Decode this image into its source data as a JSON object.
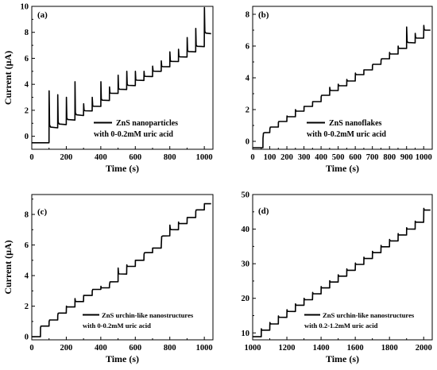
{
  "chart_data": [
    {
      "panel": "(a)",
      "type": "line",
      "xlabel": "Time (s)",
      "ylabel": "Current (µA)",
      "xlim": [
        0,
        1050
      ],
      "ylim": [
        -1,
        10
      ],
      "xticks": [
        0,
        200,
        400,
        600,
        800,
        1000
      ],
      "yticks": [
        0,
        2,
        4,
        6,
        8,
        10
      ],
      "legend": [
        "ZnS nanoparticles",
        "with 0-0.2mM uric acid"
      ],
      "legend_position": "bottom-right",
      "series": [
        {
          "pulse_times": [
            100,
            150,
            200,
            250,
            300,
            350,
            400,
            450,
            500,
            550,
            600,
            650,
            700,
            750,
            800,
            850,
            900,
            950,
            1000
          ],
          "plateaus": [
            0.3,
            0.65,
            0.9,
            1.25,
            1.6,
            1.95,
            2.3,
            2.75,
            3.3,
            3.6,
            3.9,
            4.3,
            4.6,
            5.0,
            5.35,
            5.75,
            6.1,
            6.5,
            6.9,
            7.9
          ],
          "peaks": [
            3.5,
            3.2,
            3.0,
            4.2,
            2.5,
            3.0,
            4.2,
            3.8,
            4.7,
            5.0,
            5.0,
            5.0,
            5.4,
            5.8,
            6.5,
            6.7,
            7.6,
            8.3,
            9.9
          ],
          "baseline": -0.5
        }
      ]
    },
    {
      "panel": "(b)",
      "type": "line",
      "xlabel": "Time (s)",
      "ylabel": "",
      "xlim": [
        0,
        1050
      ],
      "ylim": [
        -0.5,
        8.5
      ],
      "xticks": [
        0,
        100,
        200,
        300,
        400,
        500,
        600,
        700,
        800,
        900,
        1000
      ],
      "yticks": [
        0,
        2,
        4,
        6,
        8
      ],
      "legend": [
        "ZnS nanoflakes",
        "with 0-0.2mM uric acid"
      ],
      "legend_position": "bottom-right",
      "series": [
        {
          "pulse_times": [
            60,
            100,
            150,
            200,
            250,
            300,
            350,
            400,
            450,
            500,
            550,
            600,
            650,
            700,
            750,
            800,
            850,
            900,
            950,
            1000
          ],
          "plateaus": [
            0.2,
            0.55,
            0.9,
            1.25,
            1.55,
            1.9,
            2.2,
            2.5,
            2.9,
            3.2,
            3.5,
            3.8,
            4.2,
            4.5,
            4.85,
            5.2,
            5.5,
            5.85,
            6.2,
            6.5,
            7.0
          ],
          "peaks": [
            0.2,
            0.8,
            1.2,
            1.6,
            2.0,
            2.2,
            2.5,
            2.8,
            3.4,
            3.6,
            3.9,
            4.3,
            4.5,
            4.8,
            5.1,
            5.6,
            6.0,
            7.2,
            6.8,
            7.3
          ],
          "baseline": -0.4
        }
      ]
    },
    {
      "panel": "(c)",
      "type": "line",
      "xlabel": "Time (s)",
      "ylabel": "Current (µA)",
      "xlim": [
        0,
        1050
      ],
      "ylim": [
        -0.2,
        9.3
      ],
      "xticks": [
        0,
        200,
        400,
        600,
        800,
        1000
      ],
      "yticks": [
        0,
        2,
        4,
        6,
        8
      ],
      "legend": [
        "ZnS urchin-like nanostructures",
        "with 0-0.2mM uric acid"
      ],
      "legend_position": "bottom-right",
      "series": [
        {
          "pulse_times": [
            50,
            100,
            150,
            200,
            250,
            300,
            350,
            400,
            450,
            500,
            550,
            600,
            650,
            700,
            750,
            800,
            850,
            900,
            950,
            1000
          ],
          "plateaus": [
            0.3,
            0.7,
            1.1,
            1.55,
            1.95,
            2.3,
            2.7,
            3.1,
            3.2,
            3.6,
            4.1,
            4.6,
            5.0,
            5.5,
            5.8,
            6.6,
            7.0,
            7.4,
            7.8,
            8.3,
            8.7
          ],
          "peaks": [
            0.6,
            1.0,
            1.4,
            2.0,
            2.5,
            2.7,
            3.0,
            3.3,
            3.4,
            4.5,
            4.7,
            5.0,
            5.4,
            5.8,
            6.0,
            7.3,
            7.5,
            7.8,
            8.2,
            8.7
          ],
          "baseline": 0.0
        }
      ]
    },
    {
      "panel": "(d)",
      "type": "line",
      "xlabel": "Time (s)",
      "ylabel": "",
      "xlim": [
        1000,
        2050
      ],
      "ylim": [
        8,
        50
      ],
      "xticks": [
        1000,
        1200,
        1400,
        1600,
        1800,
        2000
      ],
      "yticks": [
        10,
        20,
        30,
        40,
        50
      ],
      "legend": [
        "ZnS urchin-like nanostructures",
        "with 0.2-1.2mM uric acid"
      ],
      "legend_position": "bottom-right",
      "series": [
        {
          "pulse_times": [
            1050,
            1100,
            1150,
            1200,
            1250,
            1300,
            1350,
            1400,
            1450,
            1500,
            1550,
            1600,
            1650,
            1700,
            1750,
            1800,
            1850,
            1900,
            1950,
            2000
          ],
          "plateaus": [
            8.9,
            10.8,
            12.6,
            14.5,
            16.2,
            18.0,
            19.6,
            21.3,
            23.0,
            24.7,
            26.4,
            28.1,
            29.8,
            31.5,
            33.2,
            34.9,
            36.6,
            38.3,
            40.0,
            42.0,
            45.5
          ],
          "peaks": [
            11.2,
            13.0,
            14.9,
            16.7,
            18.4,
            20.0,
            21.7,
            23.4,
            25.1,
            26.8,
            28.5,
            30.2,
            31.9,
            33.6,
            35.3,
            37.0,
            38.7,
            40.4,
            42.3,
            46.0
          ],
          "baseline": 8.9
        }
      ]
    }
  ]
}
